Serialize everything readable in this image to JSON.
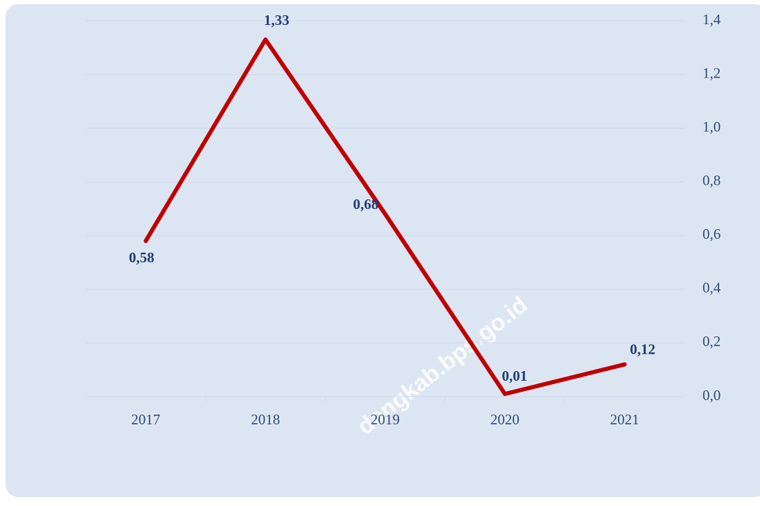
{
  "chart_data": {
    "type": "line",
    "categories": [
      "2017",
      "2018",
      "2019",
      "2020",
      "2021"
    ],
    "series": [
      {
        "name": null,
        "color": "#c00000",
        "values": [
          0.58,
          1.33,
          0.68,
          0.01,
          0.12
        ],
        "value_labels": [
          "0,58",
          "1,33",
          "0,68",
          "0,01",
          "0,12"
        ]
      }
    ],
    "ylim": [
      0,
      1.4
    ],
    "yticks": [
      {
        "value": 0,
        "label": "0,0"
      },
      {
        "value": 0.2,
        "label": "0,2"
      },
      {
        "value": 0.4,
        "label": "0,4"
      },
      {
        "value": 0.6,
        "label": "0,6"
      },
      {
        "value": 0.8,
        "label": "0,8"
      },
      {
        "value": 1.0,
        "label": "1,0"
      },
      {
        "value": 1.2,
        "label": "1,2"
      },
      {
        "value": 1.4,
        "label": "1,4"
      }
    ],
    "y_axis_side": "right",
    "grid": true,
    "watermark": "dangkab.bps.go.id"
  }
}
